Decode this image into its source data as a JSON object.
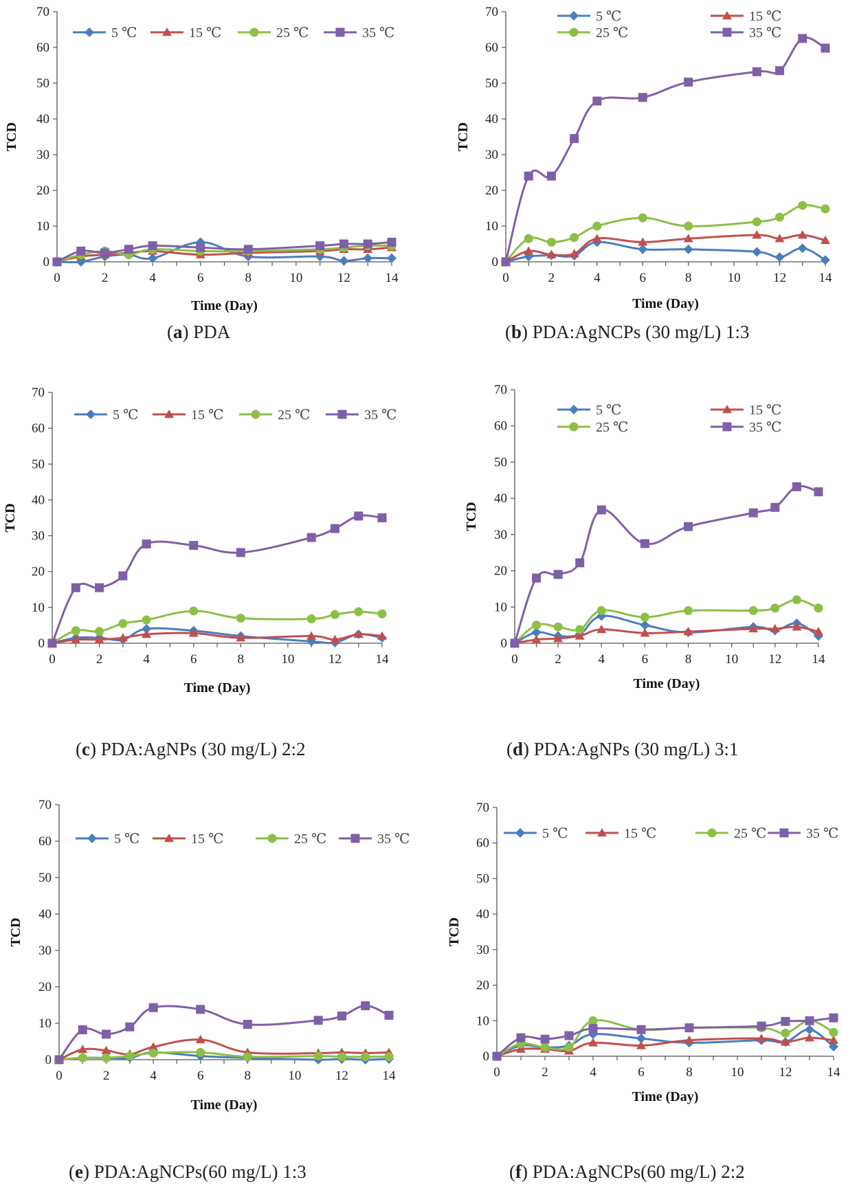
{
  "chart_data": [
    {
      "type": "line",
      "panel": "a",
      "caption_label": "a",
      "caption_text": "PDA",
      "xlabel": "Time (Day)",
      "ylabel": "TCD",
      "xlim": [
        0,
        14
      ],
      "ylim": [
        0,
        70
      ],
      "xticks": [
        0,
        2,
        4,
        6,
        8,
        10,
        12,
        14
      ],
      "yticks": [
        0,
        10,
        20,
        30,
        40,
        50,
        60,
        70
      ],
      "legend": "top, single row",
      "series": [
        {
          "name": "5 ℃",
          "color": "#4a7dbf",
          "marker": "diamond",
          "x": [
            0,
            1,
            2,
            3,
            4,
            6,
            8,
            11,
            12,
            13,
            14
          ],
          "values": [
            0,
            0,
            1.5,
            2,
            1,
            5.5,
            1.5,
            1.5,
            0.3,
            1,
            1
          ]
        },
        {
          "name": "15 ℃",
          "color": "#c0504d",
          "marker": "triangle",
          "x": [
            0,
            1,
            2,
            3,
            4,
            6,
            8,
            11,
            12,
            13,
            14
          ],
          "values": [
            0,
            1.5,
            2,
            2.5,
            3,
            2,
            2.5,
            3,
            3.5,
            3.5,
            4
          ]
        },
        {
          "name": "25 ℃",
          "color": "#8cbf46",
          "marker": "circle",
          "x": [
            0,
            1,
            2,
            3,
            4,
            6,
            8,
            11,
            12,
            13,
            14
          ],
          "values": [
            0,
            2,
            3,
            2,
            3.5,
            3,
            3,
            3.5,
            4,
            4.5,
            4.5
          ]
        },
        {
          "name": "35 ℃",
          "color": "#7f5fa8",
          "marker": "square",
          "x": [
            0,
            1,
            2,
            3,
            4,
            6,
            8,
            11,
            12,
            13,
            14
          ],
          "values": [
            0,
            3,
            2.5,
            3.5,
            4.5,
            4,
            3.5,
            4.5,
            5,
            5,
            5.5
          ]
        }
      ]
    },
    {
      "type": "line",
      "panel": "b",
      "caption_label": "b",
      "caption_text": "PDA:AgNCPs (30 mg/L) 1:3",
      "xlabel": "Time (Day)",
      "ylabel": "TCD",
      "xlim": [
        0,
        14
      ],
      "ylim": [
        0,
        70
      ],
      "xticks": [
        0,
        2,
        4,
        6,
        8,
        10,
        12,
        14
      ],
      "yticks": [
        0,
        10,
        20,
        30,
        40,
        50,
        60,
        70
      ],
      "legend": "top, two rows",
      "series": [
        {
          "name": "5 ℃",
          "color": "#4a7dbf",
          "marker": "diamond",
          "x": [
            0,
            1,
            2,
            3,
            4,
            6,
            8,
            11,
            12,
            13,
            14
          ],
          "values": [
            0,
            1.5,
            1.8,
            1.7,
            5.5,
            3.5,
            3.5,
            2.8,
            1.3,
            3.8,
            0.5
          ]
        },
        {
          "name": "15 ℃",
          "color": "#c0504d",
          "marker": "triangle",
          "x": [
            0,
            1,
            2,
            3,
            4,
            6,
            8,
            11,
            12,
            13,
            14
          ],
          "values": [
            0,
            3,
            2,
            2.3,
            6.5,
            5.5,
            6.5,
            7.5,
            6.5,
            7.5,
            6
          ]
        },
        {
          "name": "25 ℃",
          "color": "#8cbf46",
          "marker": "circle",
          "x": [
            0,
            1,
            2,
            3,
            4,
            6,
            8,
            11,
            12,
            13,
            14
          ],
          "values": [
            0,
            6.5,
            5.5,
            6.8,
            10,
            12.3,
            10,
            11.2,
            12.5,
            15.8,
            14.8
          ]
        },
        {
          "name": "35 ℃",
          "color": "#7f5fa8",
          "marker": "square",
          "x": [
            0,
            1,
            2,
            3,
            4,
            6,
            8,
            11,
            12,
            13,
            14
          ],
          "values": [
            0,
            24,
            24,
            34.5,
            45,
            46,
            50.3,
            53.2,
            53.5,
            62.5,
            59.8
          ]
        }
      ]
    },
    {
      "type": "line",
      "panel": "c",
      "caption_label": "c",
      "caption_text": "PDA:AgNPs (30 mg/L) 2:2",
      "xlabel": "Time (Day)",
      "ylabel": "TCD",
      "xlim": [
        0,
        14
      ],
      "ylim": [
        0,
        70
      ],
      "xticks": [
        0,
        2,
        4,
        6,
        8,
        10,
        12,
        14
      ],
      "yticks": [
        0,
        10,
        20,
        30,
        40,
        50,
        60,
        70
      ],
      "legend": "top, single row",
      "series": [
        {
          "name": "5 ℃",
          "color": "#4a7dbf",
          "marker": "diamond",
          "x": [
            0,
            1,
            2,
            3,
            4,
            6,
            8,
            11,
            12,
            13,
            14
          ],
          "values": [
            0,
            1.5,
            1.5,
            1,
            4,
            3.5,
            2,
            0.5,
            0.2,
            2.5,
            1.5
          ]
        },
        {
          "name": "15 ℃",
          "color": "#c0504d",
          "marker": "triangle",
          "x": [
            0,
            1,
            2,
            3,
            4,
            6,
            8,
            11,
            12,
            13,
            14
          ],
          "values": [
            0,
            1,
            1,
            1.5,
            2.5,
            2.8,
            1.5,
            2,
            1,
            2.5,
            2
          ]
        },
        {
          "name": "25 ℃",
          "color": "#8cbf46",
          "marker": "circle",
          "x": [
            0,
            1,
            2,
            3,
            4,
            6,
            8,
            11,
            12,
            13,
            14
          ],
          "values": [
            0,
            3.5,
            3.3,
            5.5,
            6.5,
            9,
            7,
            6.8,
            8,
            8.8,
            8.2
          ]
        },
        {
          "name": "35 ℃",
          "color": "#7f5fa8",
          "marker": "square",
          "x": [
            0,
            1,
            2,
            3,
            4,
            6,
            8,
            11,
            12,
            13,
            14
          ],
          "values": [
            0,
            15.5,
            15.5,
            18.8,
            27.7,
            27.3,
            25.3,
            29.5,
            32,
            35.5,
            35
          ]
        }
      ]
    },
    {
      "type": "line",
      "panel": "d",
      "caption_label": "d",
      "caption_text": "PDA:AgNPs (30 mg/L) 3:1",
      "xlabel": "Time (Day)",
      "ylabel": "TCD",
      "xlim": [
        0,
        14
      ],
      "ylim": [
        0,
        70
      ],
      "xticks": [
        0,
        2,
        4,
        6,
        8,
        10,
        12,
        14
      ],
      "yticks": [
        0,
        10,
        20,
        30,
        40,
        50,
        60,
        70
      ],
      "legend": "top, two rows",
      "series": [
        {
          "name": "5 ℃",
          "color": "#4a7dbf",
          "marker": "diamond",
          "x": [
            0,
            1,
            2,
            3,
            4,
            6,
            8,
            11,
            12,
            13,
            14
          ],
          "values": [
            0,
            3,
            2,
            2.5,
            7.5,
            5,
            3,
            4.5,
            3.5,
            5.5,
            2
          ]
        },
        {
          "name": "15 ℃",
          "color": "#c0504d",
          "marker": "triangle",
          "x": [
            0,
            1,
            2,
            3,
            4,
            6,
            8,
            11,
            12,
            13,
            14
          ],
          "values": [
            0,
            1,
            1.3,
            2,
            3.8,
            2.8,
            3.2,
            4,
            4,
            4.5,
            3.2
          ]
        },
        {
          "name": "25 ℃",
          "color": "#8cbf46",
          "marker": "circle",
          "x": [
            0,
            1,
            2,
            3,
            4,
            6,
            8,
            11,
            12,
            13,
            14
          ],
          "values": [
            0,
            5,
            4.5,
            3.8,
            9,
            7.2,
            9,
            9,
            9.7,
            12,
            9.7
          ]
        },
        {
          "name": "35 ℃",
          "color": "#7f5fa8",
          "marker": "square",
          "x": [
            0,
            1,
            2,
            3,
            4,
            6,
            8,
            11,
            12,
            13,
            14
          ],
          "values": [
            0,
            18,
            19,
            22.2,
            36.8,
            27.5,
            32.2,
            36,
            37.5,
            43.2,
            41.8
          ]
        }
      ]
    },
    {
      "type": "line",
      "panel": "e",
      "caption_label": "e",
      "caption_text": "PDA:AgNCPs(60 mg/L) 1:3",
      "xlabel": "Time (Day)",
      "ylabel": "TCD",
      "xlim": [
        0,
        14
      ],
      "ylim": [
        0,
        70
      ],
      "xticks": [
        0,
        2,
        4,
        6,
        8,
        10,
        12,
        14
      ],
      "yticks": [
        0,
        10,
        20,
        30,
        40,
        50,
        60,
        70
      ],
      "legend": "top, single row",
      "series": [
        {
          "name": "5 ℃",
          "color": "#4a7dbf",
          "marker": "diamond",
          "x": [
            0,
            1,
            2,
            3,
            4,
            6,
            8,
            11,
            12,
            13,
            14
          ],
          "values": [
            0,
            0.5,
            0.5,
            0.5,
            2,
            1,
            0.5,
            0,
            0.2,
            0,
            0.2
          ]
        },
        {
          "name": "15 ℃",
          "color": "#c0504d",
          "marker": "triangle",
          "x": [
            0,
            1,
            2,
            3,
            4,
            6,
            8,
            11,
            12,
            13,
            14
          ],
          "values": [
            0,
            2.8,
            2.5,
            1.5,
            3.5,
            5.5,
            2,
            1.8,
            2,
            1.8,
            2
          ]
        },
        {
          "name": "25 ℃",
          "color": "#8cbf46",
          "marker": "circle",
          "x": [
            0,
            1,
            2,
            3,
            4,
            6,
            8,
            11,
            12,
            13,
            14
          ],
          "values": [
            0,
            0.5,
            0.5,
            1,
            1.8,
            2,
            0.8,
            1,
            0.8,
            0.8,
            0.8
          ]
        },
        {
          "name": "35 ℃",
          "color": "#7f5fa8",
          "marker": "square",
          "x": [
            0,
            1,
            2,
            3,
            4,
            6,
            8,
            11,
            12,
            13,
            14
          ],
          "values": [
            0,
            8.2,
            7,
            9,
            14.3,
            13.8,
            9.7,
            10.8,
            12,
            14.8,
            12.2
          ]
        }
      ]
    },
    {
      "type": "line",
      "panel": "f",
      "caption_label": "f",
      "caption_text": "PDA:AgNCPs(60 mg/L) 2:2",
      "xlabel": "Time (Day)",
      "ylabel": "TCD",
      "xlim": [
        0,
        14
      ],
      "ylim": [
        0,
        70
      ],
      "xticks": [
        0,
        2,
        4,
        6,
        8,
        10,
        12,
        14
      ],
      "yticks": [
        0,
        10,
        20,
        30,
        40,
        50,
        60,
        70
      ],
      "legend": "top, single row",
      "series": [
        {
          "name": "5 ℃",
          "color": "#4a7dbf",
          "marker": "diamond",
          "x": [
            0,
            1,
            2,
            3,
            4,
            6,
            8,
            11,
            12,
            13,
            14
          ],
          "values": [
            0,
            3,
            2.5,
            3,
            6.2,
            5,
            3.8,
            4.5,
            4,
            7.5,
            2.7
          ]
        },
        {
          "name": "15 ℃",
          "color": "#c0504d",
          "marker": "triangle",
          "x": [
            0,
            1,
            2,
            3,
            4,
            6,
            8,
            11,
            12,
            13,
            14
          ],
          "values": [
            0,
            2,
            2,
            1.5,
            3.8,
            3,
            4.5,
            5,
            4,
            5.2,
            4.5
          ]
        },
        {
          "name": "25 ℃",
          "color": "#8cbf46",
          "marker": "circle",
          "x": [
            0,
            1,
            2,
            3,
            4,
            6,
            8,
            11,
            12,
            13,
            14
          ],
          "values": [
            0,
            3.5,
            2.5,
            2.5,
            10,
            7.5,
            8,
            8,
            6.5,
            10,
            6.7
          ]
        },
        {
          "name": "35 ℃",
          "color": "#7f5fa8",
          "marker": "square",
          "x": [
            0,
            1,
            2,
            3,
            4,
            6,
            8,
            11,
            12,
            13,
            14
          ],
          "values": [
            0,
            5.2,
            4.8,
            5.8,
            7.8,
            7.5,
            8,
            8.5,
            9.8,
            10,
            10.8
          ]
        }
      ]
    }
  ]
}
